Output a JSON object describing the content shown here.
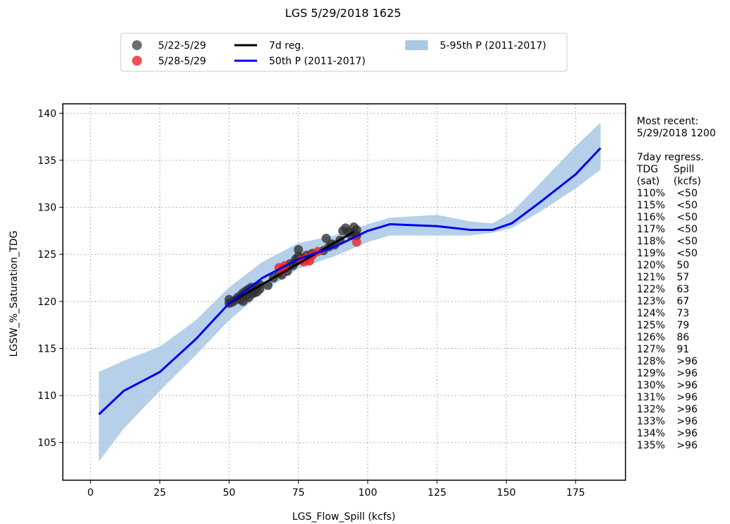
{
  "chart_data": {
    "type": "scatter",
    "title": "LGS 5/29/2018 1625",
    "xlabel": "LGS_Flow_Spill (kcfs)",
    "ylabel": "LGSW_%_Saturation_TDG",
    "xlim": [
      -10,
      193
    ],
    "ylim": [
      101,
      141
    ],
    "xticks": [
      0,
      25,
      50,
      75,
      100,
      125,
      150,
      175
    ],
    "yticks": [
      105,
      110,
      115,
      120,
      125,
      130,
      135,
      140
    ],
    "grid": true,
    "legend_position": "top-center",
    "legend": [
      {
        "label": "5/22-5/29",
        "kind": "marker",
        "color": "#555555"
      },
      {
        "label": "5/28-5/29",
        "kind": "marker",
        "color": "#ee3333"
      },
      {
        "label": "7d reg.",
        "kind": "line",
        "color": "#000000"
      },
      {
        "label": "50th P (2011-2017)",
        "kind": "line",
        "color": "#0000ee"
      },
      {
        "label": "5-95th P (2011-2017)",
        "kind": "band",
        "color": "#a8c8e4"
      }
    ],
    "series": [
      {
        "name": "5/22-5/29",
        "color": "#333333",
        "points": [
          [
            50,
            120.2
          ],
          [
            50,
            119.8
          ],
          [
            51,
            119.9
          ],
          [
            52,
            120.1
          ],
          [
            53,
            120.4
          ],
          [
            54,
            120.6
          ],
          [
            54,
            120.2
          ],
          [
            55,
            120.0
          ],
          [
            55,
            120.9
          ],
          [
            56,
            121.1
          ],
          [
            56,
            120.6
          ],
          [
            57,
            120.4
          ],
          [
            57,
            121.3
          ],
          [
            58,
            121.5
          ],
          [
            58,
            120.8
          ],
          [
            59,
            121.2
          ],
          [
            59,
            120.9
          ],
          [
            60,
            121.6
          ],
          [
            60,
            121.0
          ],
          [
            61,
            121.8
          ],
          [
            61,
            121.3
          ],
          [
            64,
            121.7
          ],
          [
            66,
            122.5
          ],
          [
            68,
            123.0
          ],
          [
            69,
            122.8
          ],
          [
            70,
            123.5
          ],
          [
            71,
            123.2
          ],
          [
            72,
            124.0
          ],
          [
            73,
            123.8
          ],
          [
            74,
            124.5
          ],
          [
            74,
            124.2
          ],
          [
            75,
            125.5
          ],
          [
            75,
            124.8
          ],
          [
            76,
            124.6
          ],
          [
            78,
            124.9
          ],
          [
            80,
            125.1
          ],
          [
            84,
            125.4
          ],
          [
            85,
            126.7
          ],
          [
            86,
            125.8
          ],
          [
            87,
            126.1
          ],
          [
            88,
            126.0
          ],
          [
            90,
            126.5
          ],
          [
            91,
            127.5
          ],
          [
            92,
            127.8
          ],
          [
            93,
            127.4
          ],
          [
            94,
            127.0
          ],
          [
            95,
            127.9
          ],
          [
            95,
            127.3
          ],
          [
            96,
            127.6
          ],
          [
            96,
            127.0
          ]
        ]
      },
      {
        "name": "5/28-5/29",
        "color": "#ee2222",
        "points": [
          [
            68,
            123.6
          ],
          [
            69,
            123.3
          ],
          [
            70,
            123.8
          ],
          [
            76,
            124.4
          ],
          [
            77,
            124.2
          ],
          [
            78,
            124.6
          ],
          [
            79,
            124.3
          ],
          [
            80,
            124.9
          ],
          [
            82,
            125.3
          ],
          [
            96,
            126.3
          ]
        ]
      },
      {
        "name": "7d reg.",
        "type": "line",
        "color": "#000000",
        "x": [
          50,
          95
        ],
        "y": [
          119.8,
          127.4
        ]
      },
      {
        "name": "50th P (2011-2017)",
        "type": "line",
        "color": "#0000ee",
        "x": [
          3,
          12,
          25,
          38,
          50,
          62,
          75,
          88,
          100,
          108,
          125,
          137,
          145,
          152,
          162,
          175,
          184
        ],
        "y": [
          108.0,
          110.5,
          112.5,
          116.0,
          119.8,
          122.5,
          124.5,
          125.8,
          127.5,
          128.2,
          128.0,
          127.6,
          127.6,
          128.3,
          130.5,
          133.5,
          136.3
        ]
      },
      {
        "name": "5-95th P (2011-2017)",
        "type": "band",
        "color": "#a8c8e4",
        "x": [
          3,
          12,
          25,
          38,
          50,
          62,
          75,
          88,
          100,
          108,
          125,
          137,
          145,
          152,
          162,
          175,
          184
        ],
        "lower": [
          103.0,
          106.5,
          110.5,
          114.3,
          118.0,
          121.0,
          123.5,
          124.8,
          126.3,
          127.0,
          127.0,
          127.0,
          127.3,
          127.8,
          129.5,
          132.0,
          134.0
        ],
        "upper": [
          112.5,
          113.7,
          115.2,
          118.0,
          121.5,
          124.2,
          126.2,
          127.0,
          128.2,
          128.9,
          129.2,
          128.5,
          128.3,
          129.5,
          132.5,
          136.5,
          139.0
        ]
      }
    ]
  },
  "side_panel": {
    "recent_label": "Most recent:",
    "recent_time": "5/29/2018 1200",
    "regress_title": "7day regress.",
    "col1_header": "TDG",
    "col2_header": "Spill",
    "col1_sub": "(sat)",
    "col2_sub": "(kcfs)",
    "rows": [
      {
        "tdg": "110%",
        "spill": "<50"
      },
      {
        "tdg": "115%",
        "spill": "<50"
      },
      {
        "tdg": "116%",
        "spill": "<50"
      },
      {
        "tdg": "117%",
        "spill": "<50"
      },
      {
        "tdg": "118%",
        "spill": "<50"
      },
      {
        "tdg": "119%",
        "spill": "<50"
      },
      {
        "tdg": "120%",
        "spill": "50"
      },
      {
        "tdg": "121%",
        "spill": "57"
      },
      {
        "tdg": "122%",
        "spill": "63"
      },
      {
        "tdg": "123%",
        "spill": "67"
      },
      {
        "tdg": "124%",
        "spill": "73"
      },
      {
        "tdg": "125%",
        "spill": "79"
      },
      {
        "tdg": "126%",
        "spill": "86"
      },
      {
        "tdg": "127%",
        "spill": "91"
      },
      {
        "tdg": "128%",
        "spill": ">96"
      },
      {
        "tdg": "129%",
        "spill": ">96"
      },
      {
        "tdg": "130%",
        "spill": ">96"
      },
      {
        "tdg": "131%",
        "spill": ">96"
      },
      {
        "tdg": "132%",
        "spill": ">96"
      },
      {
        "tdg": "133%",
        "spill": ">96"
      },
      {
        "tdg": "134%",
        "spill": ">96"
      },
      {
        "tdg": "135%",
        "spill": ">96"
      }
    ]
  }
}
